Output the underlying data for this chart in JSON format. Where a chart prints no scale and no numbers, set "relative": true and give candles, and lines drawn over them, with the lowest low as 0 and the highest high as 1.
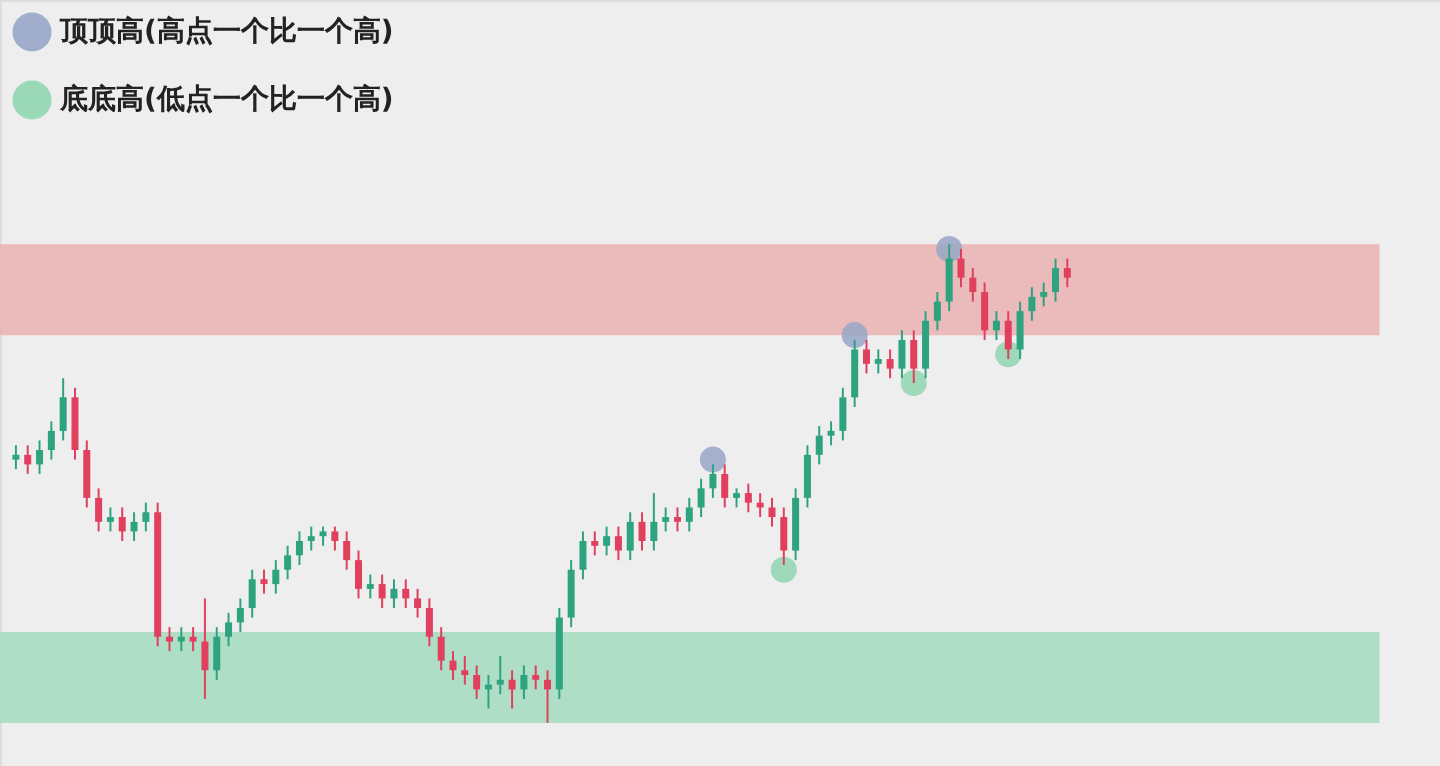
{
  "chart_data": {
    "type": "candlestick",
    "relative": true,
    "legend": "top left",
    "grid": false,
    "categories": [
      null,
      null,
      null,
      null,
      null,
      null,
      null,
      null,
      null,
      null,
      null,
      null,
      null,
      null,
      null,
      null,
      null,
      null,
      null,
      null,
      null,
      null,
      null,
      null,
      null,
      null,
      null,
      null,
      null,
      null,
      null,
      null,
      null,
      null,
      null,
      null,
      null,
      null,
      null,
      null,
      null,
      null,
      null,
      null,
      null,
      null,
      null,
      null,
      null,
      null,
      null,
      null,
      null,
      null,
      null,
      null,
      null,
      null,
      null,
      null,
      null,
      null,
      null,
      null,
      null,
      null,
      null,
      null,
      null,
      null,
      null,
      null,
      null,
      null,
      null,
      null,
      null,
      null,
      null,
      null,
      null,
      null,
      null,
      null,
      null,
      null,
      null,
      null,
      null,
      null
    ],
    "colors": [
      "#2ea37f",
      "#e0405e",
      "#2ea37f",
      "#2ea37f",
      "#2ea37f",
      "#e0405e",
      "#e0405e",
      "#e0405e",
      "#2ea37f",
      "#e0405e",
      "#2ea37f",
      "#2ea37f",
      "#e0405e",
      "#e0405e",
      "#2ea37f",
      "#e0405e",
      "#e0405e",
      "#2ea37f",
      "#2ea37f",
      "#2ea37f",
      "#2ea37f",
      "#e0405e",
      "#2ea37f",
      "#2ea37f",
      "#2ea37f",
      "#2ea37f",
      "#2ea37f",
      "#e0405e",
      "#e0405e",
      "#e0405e",
      "#2ea37f",
      "#e0405e",
      "#2ea37f",
      "#e0405e",
      "#e0405e",
      "#e0405e",
      "#e0405e",
      "#e0405e",
      "#e0405e",
      "#e0405e",
      "#2ea37f",
      "#2ea37f",
      "#e0405e",
      "#2ea37f",
      "#e0405e",
      "#e0405e",
      "#2ea37f",
      "#2ea37f",
      "#2ea37f",
      "#e0405e",
      "#2ea37f",
      "#e0405e",
      "#2ea37f",
      "#e0405e",
      "#2ea37f",
      "#2ea37f",
      "#e0405e",
      "#2ea37f",
      "#2ea37f",
      "#2ea37f",
      "#e0405e",
      "#2ea37f",
      "#e0405e",
      "#e0405e",
      "#e0405e",
      "#e0405e",
      "#2ea37f",
      "#2ea37f",
      "#2ea37f",
      "#2ea37f",
      "#2ea37f",
      "#2ea37f",
      "#e0405e",
      "#2ea37f",
      "#e0405e",
      "#2ea37f",
      "#e0405e",
      "#2ea37f",
      "#2ea37f",
      "#2ea37f",
      "#e0405e",
      "#e0405e",
      "#e0405e",
      "#2ea37f",
      "#e0405e",
      "#2ea37f",
      "#2ea37f",
      "#2ea37f",
      "#2ea37f",
      "#e0405e"
    ],
    "ohlc": [
      [
        0.55,
        0.58,
        0.53,
        0.56
      ],
      [
        0.56,
        0.58,
        0.52,
        0.54
      ],
      [
        0.54,
        0.59,
        0.52,
        0.57
      ],
      [
        0.57,
        0.63,
        0.55,
        0.61
      ],
      [
        0.61,
        0.72,
        0.59,
        0.68
      ],
      [
        0.68,
        0.7,
        0.55,
        0.57
      ],
      [
        0.57,
        0.59,
        0.45,
        0.47
      ],
      [
        0.47,
        0.49,
        0.4,
        0.42
      ],
      [
        0.42,
        0.45,
        0.4,
        0.43
      ],
      [
        0.43,
        0.45,
        0.38,
        0.4
      ],
      [
        0.4,
        0.44,
        0.38,
        0.42
      ],
      [
        0.42,
        0.46,
        0.4,
        0.44
      ],
      [
        0.44,
        0.46,
        0.16,
        0.18
      ],
      [
        0.18,
        0.2,
        0.15,
        0.17
      ],
      [
        0.17,
        0.2,
        0.15,
        0.18
      ],
      [
        0.18,
        0.2,
        0.15,
        0.17
      ],
      [
        0.17,
        0.26,
        0.05,
        0.11
      ],
      [
        0.11,
        0.2,
        0.09,
        0.18
      ],
      [
        0.18,
        0.23,
        0.16,
        0.21
      ],
      [
        0.21,
        0.26,
        0.19,
        0.24
      ],
      [
        0.24,
        0.32,
        0.22,
        0.3
      ],
      [
        0.3,
        0.32,
        0.27,
        0.29
      ],
      [
        0.29,
        0.34,
        0.27,
        0.32
      ],
      [
        0.32,
        0.37,
        0.3,
        0.35
      ],
      [
        0.35,
        0.4,
        0.33,
        0.38
      ],
      [
        0.38,
        0.41,
        0.36,
        0.39
      ],
      [
        0.39,
        0.41,
        0.37,
        0.4
      ],
      [
        0.4,
        0.41,
        0.36,
        0.38
      ],
      [
        0.38,
        0.4,
        0.32,
        0.34
      ],
      [
        0.34,
        0.36,
        0.26,
        0.28
      ],
      [
        0.28,
        0.31,
        0.26,
        0.29
      ],
      [
        0.29,
        0.31,
        0.24,
        0.26
      ],
      [
        0.26,
        0.3,
        0.24,
        0.28
      ],
      [
        0.28,
        0.3,
        0.24,
        0.26
      ],
      [
        0.26,
        0.28,
        0.22,
        0.24
      ],
      [
        0.24,
        0.26,
        0.16,
        0.18
      ],
      [
        0.18,
        0.2,
        0.11,
        0.13
      ],
      [
        0.13,
        0.15,
        0.09,
        0.11
      ],
      [
        0.11,
        0.14,
        0.08,
        0.1
      ],
      [
        0.1,
        0.12,
        0.05,
        0.07
      ],
      [
        0.07,
        0.1,
        0.03,
        0.08
      ],
      [
        0.08,
        0.14,
        0.06,
        0.09
      ],
      [
        0.09,
        0.11,
        0.03,
        0.07
      ],
      [
        0.07,
        0.12,
        0.05,
        0.1
      ],
      [
        0.1,
        0.12,
        0.07,
        0.09
      ],
      [
        0.09,
        0.11,
        0,
        0.07
      ],
      [
        0.07,
        0.24,
        0.05,
        0.22
      ],
      [
        0.22,
        0.34,
        0.2,
        0.32
      ],
      [
        0.32,
        0.4,
        0.3,
        0.38
      ],
      [
        0.38,
        0.4,
        0.35,
        0.37
      ],
      [
        0.37,
        0.41,
        0.35,
        0.39
      ],
      [
        0.39,
        0.41,
        0.34,
        0.36
      ],
      [
        0.36,
        0.44,
        0.34,
        0.42
      ],
      [
        0.42,
        0.44,
        0.36,
        0.38
      ],
      [
        0.38,
        0.48,
        0.36,
        0.42
      ],
      [
        0.42,
        0.45,
        0.4,
        0.43
      ],
      [
        0.43,
        0.45,
        0.4,
        0.42
      ],
      [
        0.42,
        0.47,
        0.4,
        0.45
      ],
      [
        0.45,
        0.51,
        0.43,
        0.49
      ],
      [
        0.49,
        0.54,
        0.47,
        0.52
      ],
      [
        0.52,
        0.54,
        0.45,
        0.47
      ],
      [
        0.47,
        0.49,
        0.45,
        0.48
      ],
      [
        0.48,
        0.5,
        0.44,
        0.46
      ],
      [
        0.46,
        0.48,
        0.43,
        0.45
      ],
      [
        0.45,
        0.47,
        0.41,
        0.43
      ],
      [
        0.43,
        0.45,
        0.33,
        0.36
      ],
      [
        0.36,
        0.49,
        0.34,
        0.47
      ],
      [
        0.47,
        0.58,
        0.45,
        0.56
      ],
      [
        0.56,
        0.62,
        0.54,
        0.6
      ],
      [
        0.6,
        0.63,
        0.58,
        0.61
      ],
      [
        0.61,
        0.7,
        0.59,
        0.68
      ],
      [
        0.68,
        0.8,
        0.66,
        0.78
      ],
      [
        0.78,
        0.8,
        0.73,
        0.75
      ],
      [
        0.75,
        0.78,
        0.73,
        0.76
      ],
      [
        0.76,
        0.78,
        0.72,
        0.74
      ],
      [
        0.74,
        0.82,
        0.72,
        0.8
      ],
      [
        0.8,
        0.82,
        0.71,
        0.74
      ],
      [
        0.74,
        0.86,
        0.72,
        0.84
      ],
      [
        0.84,
        0.9,
        0.82,
        0.88
      ],
      [
        0.88,
        1,
        0.86,
        0.97
      ],
      [
        0.97,
        0.99,
        0.91,
        0.93
      ],
      [
        0.93,
        0.95,
        0.88,
        0.9
      ],
      [
        0.9,
        0.92,
        0.8,
        0.82
      ],
      [
        0.82,
        0.86,
        0.8,
        0.84
      ],
      [
        0.84,
        0.86,
        0.76,
        0.78
      ],
      [
        0.78,
        0.88,
        0.76,
        0.86
      ],
      [
        0.86,
        0.91,
        0.84,
        0.89
      ],
      [
        0.89,
        0.92,
        0.87,
        0.9
      ],
      [
        0.9,
        0.97,
        0.88,
        0.95
      ],
      [
        0.95,
        0.97,
        0.91,
        0.93
      ]
    ],
    "series": [
      {
        "type": "scatter",
        "name": "顶顶高(高点一个比一个高)",
        "color": "#98a6c6",
        "values": [
          null,
          null,
          null,
          null,
          null,
          null,
          null,
          null,
          null,
          null,
          null,
          null,
          null,
          null,
          null,
          null,
          null,
          null,
          null,
          null,
          null,
          null,
          null,
          null,
          null,
          null,
          null,
          null,
          null,
          null,
          null,
          null,
          null,
          null,
          null,
          null,
          null,
          null,
          null,
          null,
          null,
          null,
          null,
          null,
          null,
          null,
          null,
          null,
          null,
          null,
          null,
          null,
          null,
          null,
          null,
          null,
          null,
          null,
          null,
          0.55,
          null,
          null,
          null,
          null,
          null,
          null,
          null,
          null,
          null,
          null,
          null,
          0.81,
          null,
          null,
          null,
          null,
          null,
          null,
          null,
          0.99,
          null,
          null,
          null,
          null,
          null,
          null,
          null,
          null,
          null,
          null
        ]
      },
      {
        "type": "scatter",
        "name": "底底高(低点一个比一个高)",
        "color": "#8fd6b0",
        "values": [
          null,
          null,
          null,
          null,
          null,
          null,
          null,
          null,
          null,
          null,
          null,
          null,
          null,
          null,
          null,
          null,
          null,
          null,
          null,
          null,
          null,
          null,
          null,
          null,
          null,
          null,
          null,
          null,
          null,
          null,
          null,
          null,
          null,
          null,
          null,
          null,
          null,
          null,
          null,
          null,
          null,
          null,
          null,
          null,
          null,
          null,
          null,
          null,
          null,
          null,
          null,
          null,
          null,
          null,
          null,
          null,
          null,
          null,
          null,
          null,
          null,
          null,
          null,
          null,
          null,
          0.32,
          null,
          null,
          null,
          null,
          null,
          null,
          null,
          null,
          null,
          null,
          0.71,
          null,
          null,
          null,
          null,
          null,
          null,
          null,
          0.77,
          null,
          null,
          null,
          null,
          null
        ]
      }
    ],
    "bands": [
      {
        "axis": "y",
        "from": 0.81,
        "to": 1,
        "color": "#eab4b4"
      },
      {
        "axis": "y",
        "from": 0,
        "to": 0.19,
        "color": "#a6dcc0"
      }
    ]
  }
}
